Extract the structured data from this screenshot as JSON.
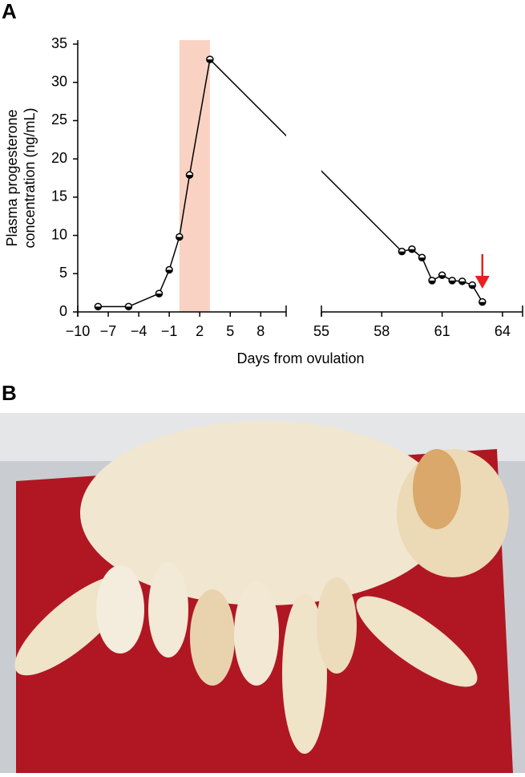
{
  "chart_data": {
    "type": "line",
    "panel_label": "A",
    "ylabel": [
      "Plasma progesterone",
      "concentration (ng/mL)"
    ],
    "xlabel": "Days from ovulation",
    "series": [
      {
        "color": "#000000",
        "x": [
          -8,
          -5,
          -2,
          -1,
          0,
          1,
          3,
          59,
          59.5,
          60,
          60.5,
          61,
          61.5,
          62,
          62.5,
          63
        ],
        "y": [
          0.7,
          0.7,
          2.4,
          5.5,
          9.8,
          17.9,
          33,
          7.9,
          8.2,
          7.1,
          4.1,
          4.8,
          4.1,
          4.0,
          3.5,
          1.3
        ]
      }
    ],
    "shade": {
      "x": [
        0,
        3
      ],
      "color": "#f9d2c3"
    },
    "arrow": {
      "x": 63,
      "color": "#e8201f"
    },
    "xlim": [
      [
        -10,
        10.5
      ],
      [
        55,
        65
      ]
    ],
    "xticks": [
      [
        {
          "value": -10,
          "label": "−10"
        },
        {
          "value": -7,
          "label": "−7"
        },
        {
          "value": -4,
          "label": "−4"
        },
        {
          "value": -1,
          "label": "−1"
        },
        2,
        5,
        8
      ],
      [
        55,
        58,
        61,
        64
      ]
    ],
    "ylim": [
      0,
      35
    ],
    "yticks": [
      0,
      5,
      10,
      15,
      20,
      25,
      30,
      35
    ]
  },
  "photo": {
    "panel_label": "B"
  }
}
